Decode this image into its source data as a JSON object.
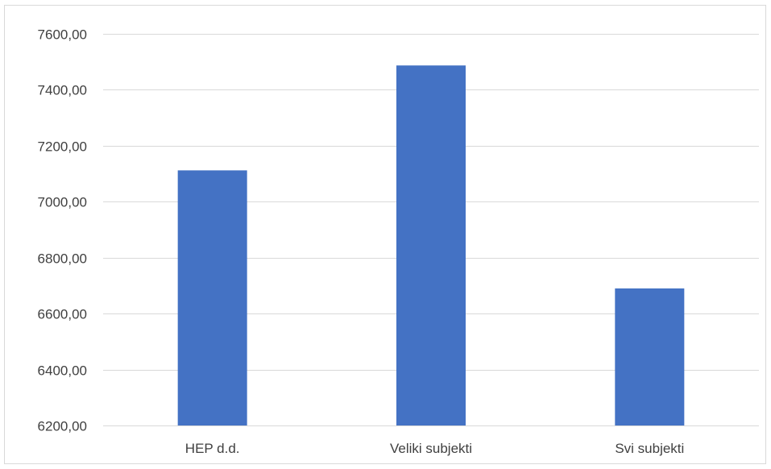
{
  "chart_data": {
    "type": "bar",
    "categories": [
      "HEP d.d.",
      "Veliki subjekti",
      "Svi subjekti"
    ],
    "values": [
      7112,
      7487,
      6690
    ],
    "ylim": [
      6200,
      7600
    ],
    "yticks": [
      6200,
      6400,
      6600,
      6800,
      7000,
      7200,
      7400,
      7600
    ],
    "ytick_labels": [
      "6200,00",
      "6400,00",
      "6600,00",
      "6800,00",
      "7000,00",
      "7200,00",
      "7400,00",
      "7600,00"
    ],
    "grid": true,
    "legend": "none",
    "bar_color": "#4472C4",
    "grid_color": "#D9D9D9",
    "text_color": "#404040"
  }
}
